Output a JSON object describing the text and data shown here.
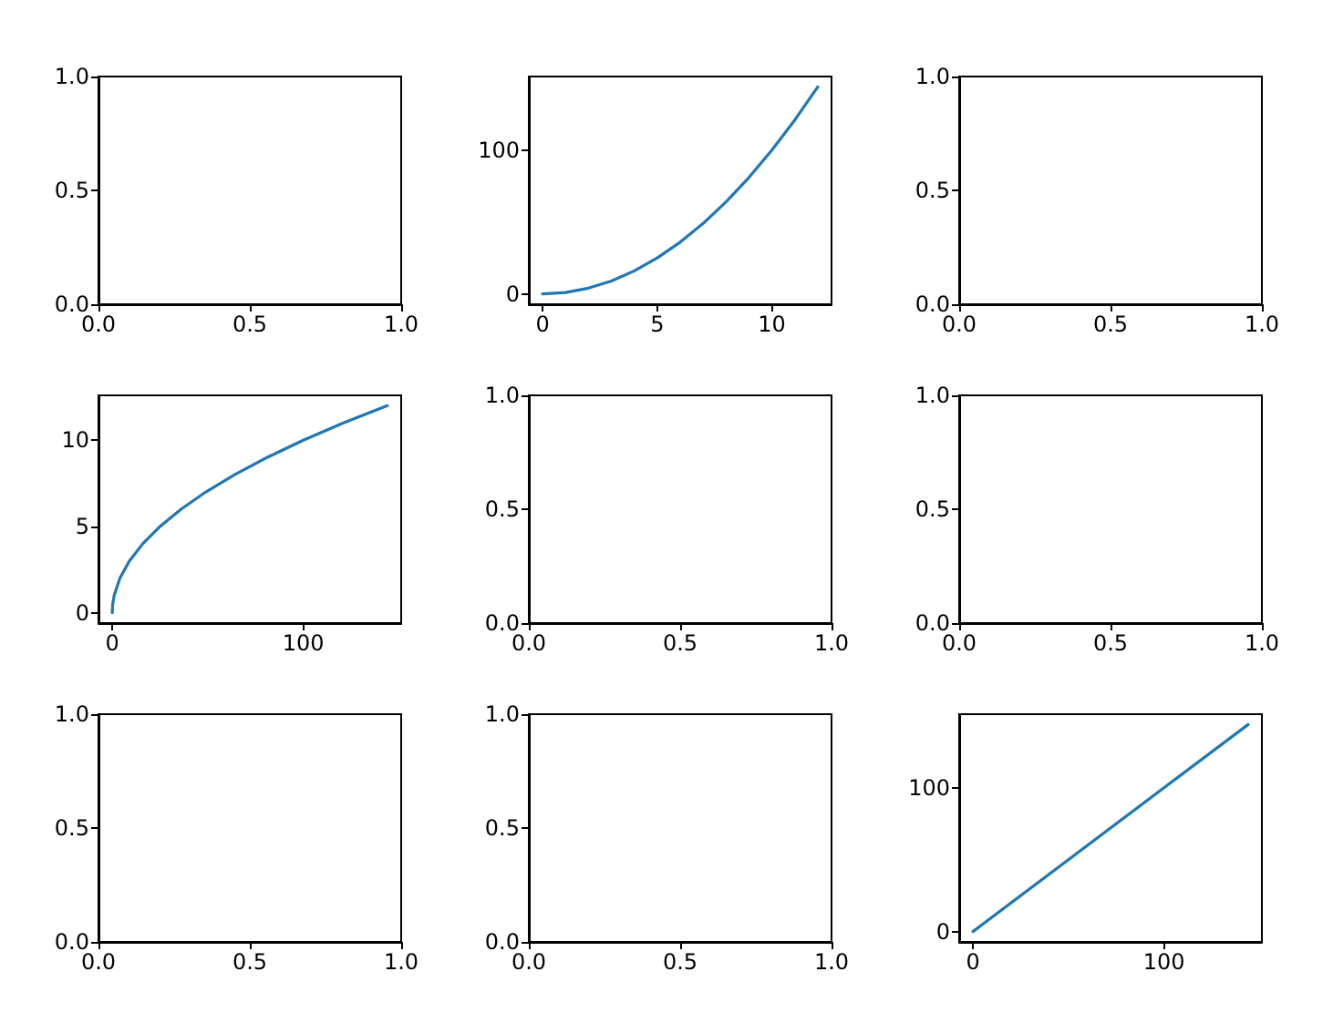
{
  "chart_data": [
    {
      "type": "line",
      "xlim": [
        0,
        1
      ],
      "ylim": [
        0,
        1
      ],
      "xticks": [
        {
          "value": 0,
          "label": "0.0"
        },
        {
          "value": 0.5,
          "label": "0.5"
        },
        {
          "value": 1,
          "label": "1.0"
        }
      ],
      "yticks": [
        {
          "value": 0,
          "label": "0.0"
        },
        {
          "value": 0.5,
          "label": "0.5"
        },
        {
          "value": 1,
          "label": "1.0"
        }
      ]
    },
    {
      "type": "line",
      "series": [
        {
          "color": "#1f77b4",
          "x": [
            0,
            1,
            2,
            3,
            4,
            5,
            6,
            7,
            8,
            9,
            10,
            11,
            12
          ],
          "values": [
            0,
            1,
            4,
            9,
            16,
            25,
            36,
            49,
            64,
            81,
            100,
            121,
            144
          ]
        }
      ],
      "xlim": [
        -0.6,
        12.6
      ],
      "ylim": [
        -7.2,
        151.2
      ],
      "xticks": [
        0,
        5,
        10
      ],
      "yticks": [
        0,
        100
      ]
    },
    {
      "type": "line",
      "xlim": [
        0,
        1
      ],
      "ylim": [
        0,
        1
      ],
      "xticks": [
        {
          "value": 0,
          "label": "0.0"
        },
        {
          "value": 0.5,
          "label": "0.5"
        },
        {
          "value": 1,
          "label": "1.0"
        }
      ],
      "yticks": [
        {
          "value": 0,
          "label": "0.0"
        },
        {
          "value": 0.5,
          "label": "0.5"
        },
        {
          "value": 1,
          "label": "1.0"
        }
      ]
    },
    {
      "type": "line",
      "series": [
        {
          "color": "#1f77b4",
          "x": [
            0,
            0.25,
            1,
            4,
            9,
            16,
            25,
            36,
            49,
            64,
            81,
            100,
            121,
            144
          ],
          "values": [
            0,
            0.5,
            1,
            2,
            3,
            4,
            5,
            6,
            7,
            8,
            9,
            10,
            11,
            12
          ]
        }
      ],
      "xlim": [
        -7.2,
        151.2
      ],
      "ylim": [
        -0.6,
        12.6
      ],
      "xticks": [
        0,
        100
      ],
      "yticks": [
        0,
        5,
        10
      ]
    },
    {
      "type": "line",
      "xlim": [
        0,
        1
      ],
      "ylim": [
        0,
        1
      ],
      "xticks": [
        {
          "value": 0,
          "label": "0.0"
        },
        {
          "value": 0.5,
          "label": "0.5"
        },
        {
          "value": 1,
          "label": "1.0"
        }
      ],
      "yticks": [
        {
          "value": 0,
          "label": "0.0"
        },
        {
          "value": 0.5,
          "label": "0.5"
        },
        {
          "value": 1,
          "label": "1.0"
        }
      ]
    },
    {
      "type": "line",
      "xlim": [
        0,
        1
      ],
      "ylim": [
        0,
        1
      ],
      "xticks": [
        {
          "value": 0,
          "label": "0.0"
        },
        {
          "value": 0.5,
          "label": "0.5"
        },
        {
          "value": 1,
          "label": "1.0"
        }
      ],
      "yticks": [
        {
          "value": 0,
          "label": "0.0"
        },
        {
          "value": 0.5,
          "label": "0.5"
        },
        {
          "value": 1,
          "label": "1.0"
        }
      ]
    },
    {
      "type": "line",
      "xlim": [
        0,
        1
      ],
      "ylim": [
        0,
        1
      ],
      "xticks": [
        {
          "value": 0,
          "label": "0.0"
        },
        {
          "value": 0.5,
          "label": "0.5"
        },
        {
          "value": 1,
          "label": "1.0"
        }
      ],
      "yticks": [
        {
          "value": 0,
          "label": "0.0"
        },
        {
          "value": 0.5,
          "label": "0.5"
        },
        {
          "value": 1,
          "label": "1.0"
        }
      ]
    },
    {
      "type": "line",
      "xlim": [
        0,
        1
      ],
      "ylim": [
        0,
        1
      ],
      "xticks": [
        {
          "value": 0,
          "label": "0.0"
        },
        {
          "value": 0.5,
          "label": "0.5"
        },
        {
          "value": 1,
          "label": "1.0"
        }
      ],
      "yticks": [
        {
          "value": 0,
          "label": "0.0"
        },
        {
          "value": 0.5,
          "label": "0.5"
        },
        {
          "value": 1,
          "label": "1.0"
        }
      ]
    },
    {
      "type": "line",
      "series": [
        {
          "color": "#1f77b4",
          "x": [
            0,
            144
          ],
          "values": [
            0,
            144
          ]
        }
      ],
      "xlim": [
        -7.2,
        151.2
      ],
      "ylim": [
        -7.2,
        151.2
      ],
      "xticks": [
        0,
        100
      ],
      "yticks": [
        0,
        100
      ]
    }
  ]
}
